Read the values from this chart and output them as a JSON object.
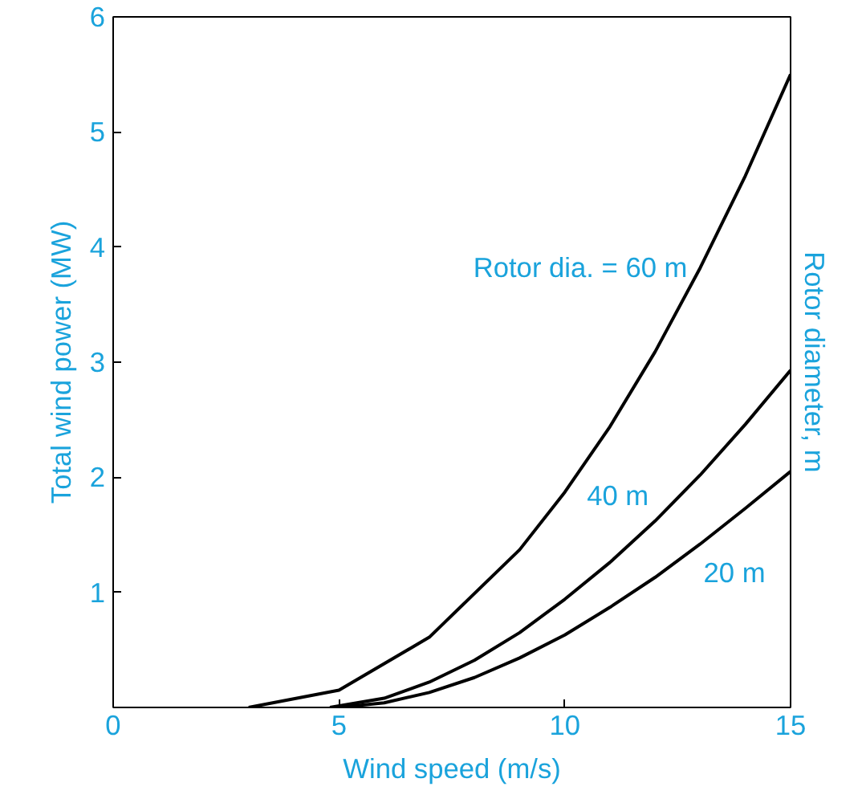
{
  "chart_data": {
    "type": "line",
    "xlabel": "Wind speed (m/s)",
    "ylabel": "Total wind power (MW)",
    "y2label": "Rotor diameter, m",
    "xlim": [
      0,
      15
    ],
    "ylim": [
      0,
      6
    ],
    "xticks": [
      0,
      5,
      10,
      15
    ],
    "yticks": [
      {
        "value": 0,
        "label": null
      },
      1,
      2,
      3,
      4,
      5,
      6
    ],
    "grid": false,
    "marker": "none",
    "line_style": "solid",
    "series": [
      {
        "name": "Rotor dia. = 60 m",
        "color": "#000000",
        "x": [
          3,
          5,
          7,
          9,
          10,
          11,
          12,
          13,
          14,
          15
        ],
        "values": [
          0,
          0.15,
          0.61,
          1.37,
          1.87,
          2.44,
          3.09,
          3.82,
          4.62,
          5.5
        ]
      },
      {
        "name": "40 m",
        "color": "#000000",
        "x": [
          4.8,
          6,
          7,
          8,
          9,
          10,
          11,
          12,
          13,
          14,
          15
        ],
        "values": [
          0,
          0.08,
          0.22,
          0.41,
          0.65,
          0.94,
          1.26,
          1.62,
          2.02,
          2.46,
          2.93
        ]
      },
      {
        "name": "20 m",
        "color": "#000000",
        "x": [
          5,
          6,
          7,
          8,
          9,
          10,
          11,
          12,
          13,
          14,
          15
        ],
        "values": [
          0,
          0.04,
          0.13,
          0.26,
          0.43,
          0.63,
          0.87,
          1.13,
          1.42,
          1.73,
          2.05
        ]
      }
    ]
  }
}
